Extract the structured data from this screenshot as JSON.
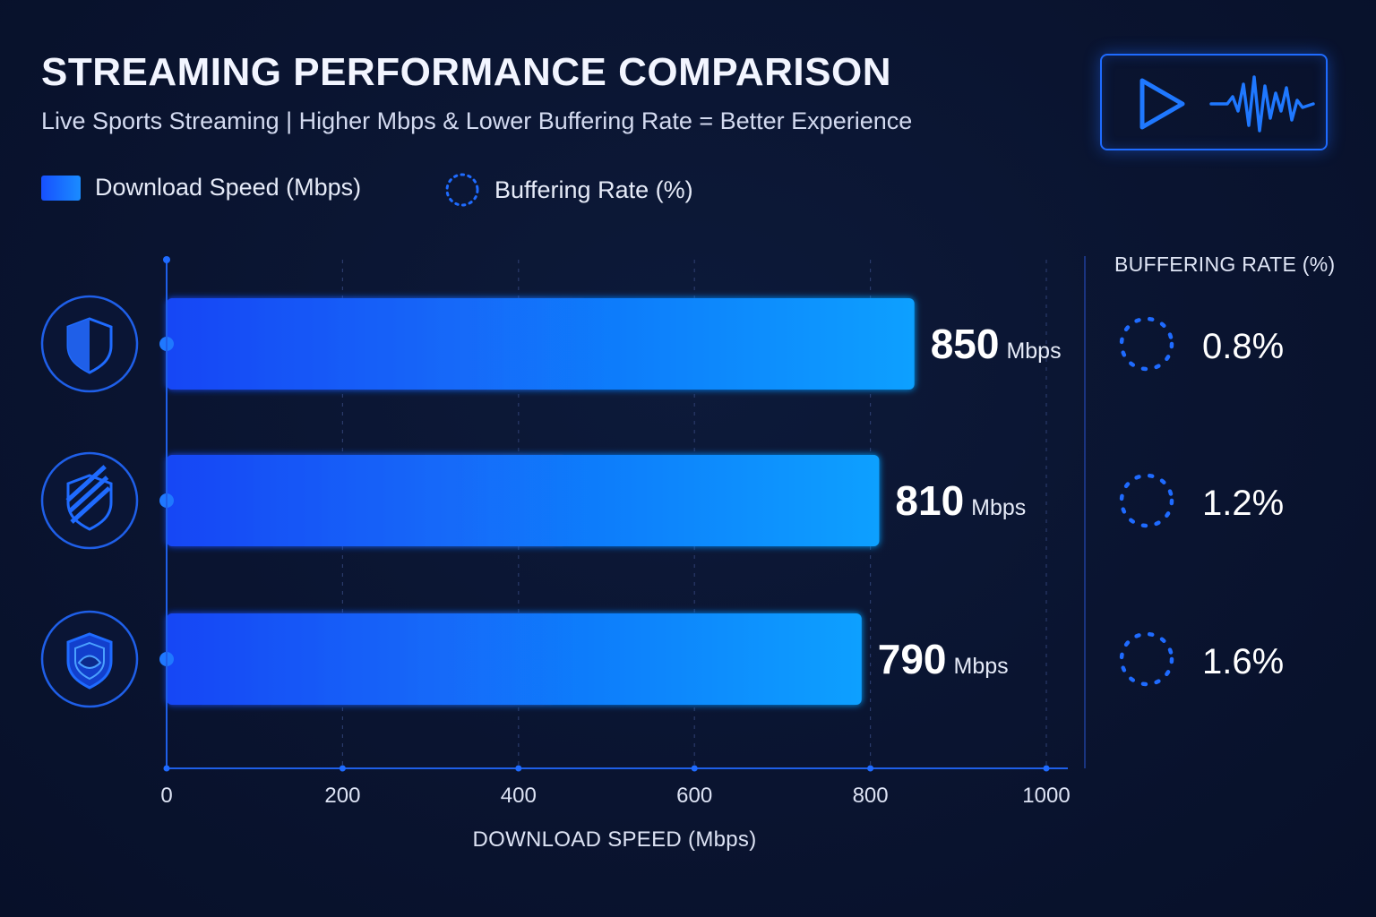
{
  "header": {
    "title": "STREAMING PERFORMANCE COMPARISON",
    "subtitle": "Live Sports Streaming | Higher Mbps & Lower Buffering Rate = Better Experience"
  },
  "badge": {
    "icons": [
      "play-icon",
      "waveform-icon"
    ]
  },
  "legend": {
    "items": [
      {
        "label": "Download Speed (Mbps)",
        "icon": "gradient-swatch"
      },
      {
        "label": "Buffering Rate (%)",
        "icon": "dotted-ring-icon"
      }
    ]
  },
  "panel": {
    "title": "BUFFERING RATE (%)"
  },
  "colors": {
    "background": "#0a1430",
    "bar_start": "#1446f5",
    "bar_end": "#0fa0ff",
    "accent": "#1f6bff",
    "text": "#ffffff"
  },
  "chart_data": {
    "type": "bar",
    "orientation": "horizontal",
    "title": "STREAMING PERFORMANCE COMPARISON",
    "subtitle": "Live Sports Streaming | Higher Mbps & Lower Buffering Rate = Better Experience",
    "xlabel": "DOWNLOAD SPEED (Mbps)",
    "xlim": [
      0,
      1000
    ],
    "xticks": [
      0,
      200,
      400,
      600,
      800,
      1000
    ],
    "grid": true,
    "legend_position": "top-left",
    "unit": "Mbps",
    "categories": [
      "shield-icon",
      "striped-shield-icon",
      "eye-shield-icon"
    ],
    "series": [
      {
        "name": "Download Speed (Mbps)",
        "values": [
          850,
          810,
          790
        ]
      },
      {
        "name": "Buffering Rate (%)",
        "values": [
          0.8,
          1.2,
          1.6
        ],
        "labels": [
          "0.8%",
          "1.2%",
          "1.6%"
        ]
      }
    ]
  }
}
